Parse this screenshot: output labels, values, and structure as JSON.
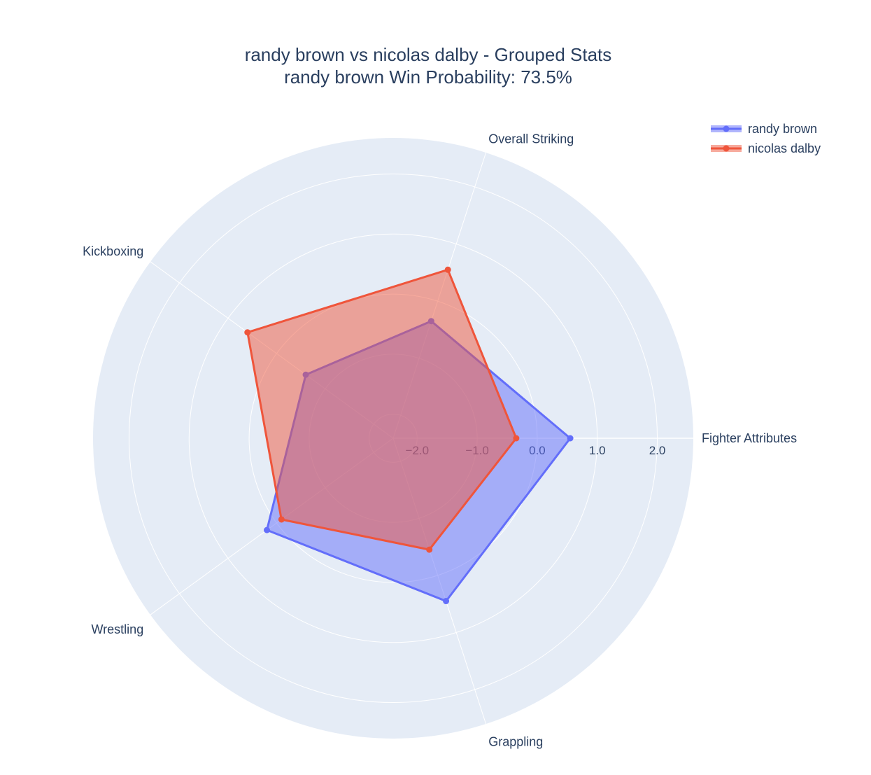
{
  "chart_data": {
    "type": "radar",
    "title_line1": "randy brown vs nicolas dalby - Grouped Stats",
    "title_line2": "randy brown Win Probability: 73.5%",
    "categories": [
      "Fighter Attributes",
      "Overall Striking",
      "Kickboxing",
      "Wrestling",
      "Grappling"
    ],
    "radial_range": [
      -2.4,
      2.6
    ],
    "radial_ticks": [
      {
        "value": -2.0,
        "label": "−2.0"
      },
      {
        "value": -1.0,
        "label": "−1.0"
      },
      {
        "value": 0.0,
        "label": "0.0"
      },
      {
        "value": 1.0,
        "label": "1.0"
      },
      {
        "value": 2.0,
        "label": "2.0"
      }
    ],
    "series": [
      {
        "name": "randy brown",
        "color": "#636efa",
        "fill": "rgba(99,110,250,0.5)",
        "values": [
          0.55,
          -0.35,
          -0.6,
          0.2,
          0.45
        ]
      },
      {
        "name": "nicolas dalby",
        "color": "#ef553b",
        "fill": "rgba(239,85,59,0.5)",
        "values": [
          -0.35,
          0.55,
          0.6,
          -0.1,
          -0.45
        ]
      }
    ],
    "legend_position": "top-right",
    "grid": true
  }
}
